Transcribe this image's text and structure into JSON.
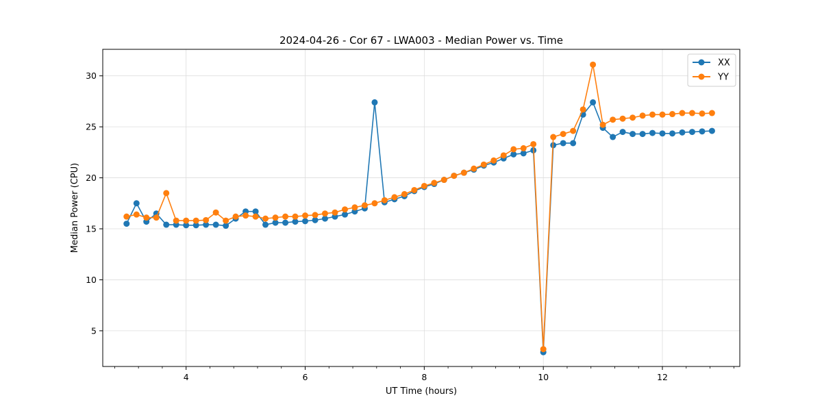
{
  "chart_data": {
    "type": "line",
    "title": "2024-04-26 - Cor 67 - LWA003 - Median Power vs. Time",
    "xlabel": "UT Time (hours)",
    "ylabel": "Median Power (CPU)",
    "xlim": [
      2.6,
      13.3
    ],
    "ylim": [
      1.5,
      32.6
    ],
    "xticks": [
      4,
      6,
      8,
      10,
      12
    ],
    "xtick_labels": [
      "4",
      "6",
      "8",
      "10",
      "12"
    ],
    "yticks": [
      5,
      10,
      15,
      20,
      25,
      30
    ],
    "ytick_labels": [
      "5",
      "10",
      "15",
      "20",
      "25",
      "30"
    ],
    "grid": true,
    "legend_position": "top-right",
    "x": [
      3.0,
      3.167,
      3.333,
      3.5,
      3.667,
      3.833,
      4.0,
      4.167,
      4.333,
      4.5,
      4.667,
      4.833,
      5.0,
      5.167,
      5.333,
      5.5,
      5.667,
      5.833,
      6.0,
      6.167,
      6.333,
      6.5,
      6.667,
      6.833,
      7.0,
      7.167,
      7.333,
      7.5,
      7.667,
      7.833,
      8.0,
      8.167,
      8.333,
      8.5,
      8.667,
      8.833,
      9.0,
      9.167,
      9.333,
      9.5,
      9.667,
      9.833,
      10.0,
      10.167,
      10.333,
      10.5,
      10.667,
      10.833,
      11.0,
      11.167,
      11.333,
      11.5,
      11.667,
      11.833,
      12.0,
      12.167,
      12.333,
      12.5,
      12.667,
      12.833
    ],
    "series": [
      {
        "name": "XX",
        "color": "#1f77b4",
        "values": [
          15.5,
          17.5,
          15.7,
          16.5,
          15.4,
          15.4,
          15.35,
          15.35,
          15.4,
          15.4,
          15.3,
          16.0,
          16.7,
          16.7,
          15.4,
          15.6,
          15.6,
          15.7,
          15.75,
          15.85,
          16.0,
          16.2,
          16.4,
          16.7,
          17.0,
          27.4,
          17.6,
          17.9,
          18.2,
          18.7,
          19.1,
          19.4,
          19.8,
          20.2,
          20.5,
          20.8,
          21.2,
          21.5,
          21.9,
          22.3,
          22.4,
          22.7,
          2.9,
          23.2,
          23.4,
          23.4,
          26.2,
          27.4,
          24.9,
          24.0,
          24.5,
          24.3,
          24.3,
          24.4,
          24.35,
          24.35,
          24.45,
          24.5,
          24.55,
          24.6
        ]
      },
      {
        "name": "YY",
        "color": "#ff7f0e",
        "values": [
          16.2,
          16.4,
          16.1,
          16.1,
          18.5,
          15.8,
          15.8,
          15.8,
          15.85,
          16.6,
          15.8,
          16.2,
          16.3,
          16.2,
          16.0,
          16.1,
          16.2,
          16.2,
          16.3,
          16.35,
          16.5,
          16.6,
          16.9,
          17.1,
          17.3,
          17.5,
          17.8,
          18.1,
          18.4,
          18.8,
          19.2,
          19.5,
          19.8,
          20.2,
          20.5,
          20.9,
          21.3,
          21.7,
          22.2,
          22.8,
          22.9,
          23.3,
          3.2,
          24.0,
          24.3,
          24.6,
          26.7,
          31.1,
          25.2,
          25.7,
          25.8,
          25.9,
          26.1,
          26.2,
          26.2,
          26.25,
          26.35,
          26.35,
          26.3,
          26.35
        ]
      }
    ]
  }
}
